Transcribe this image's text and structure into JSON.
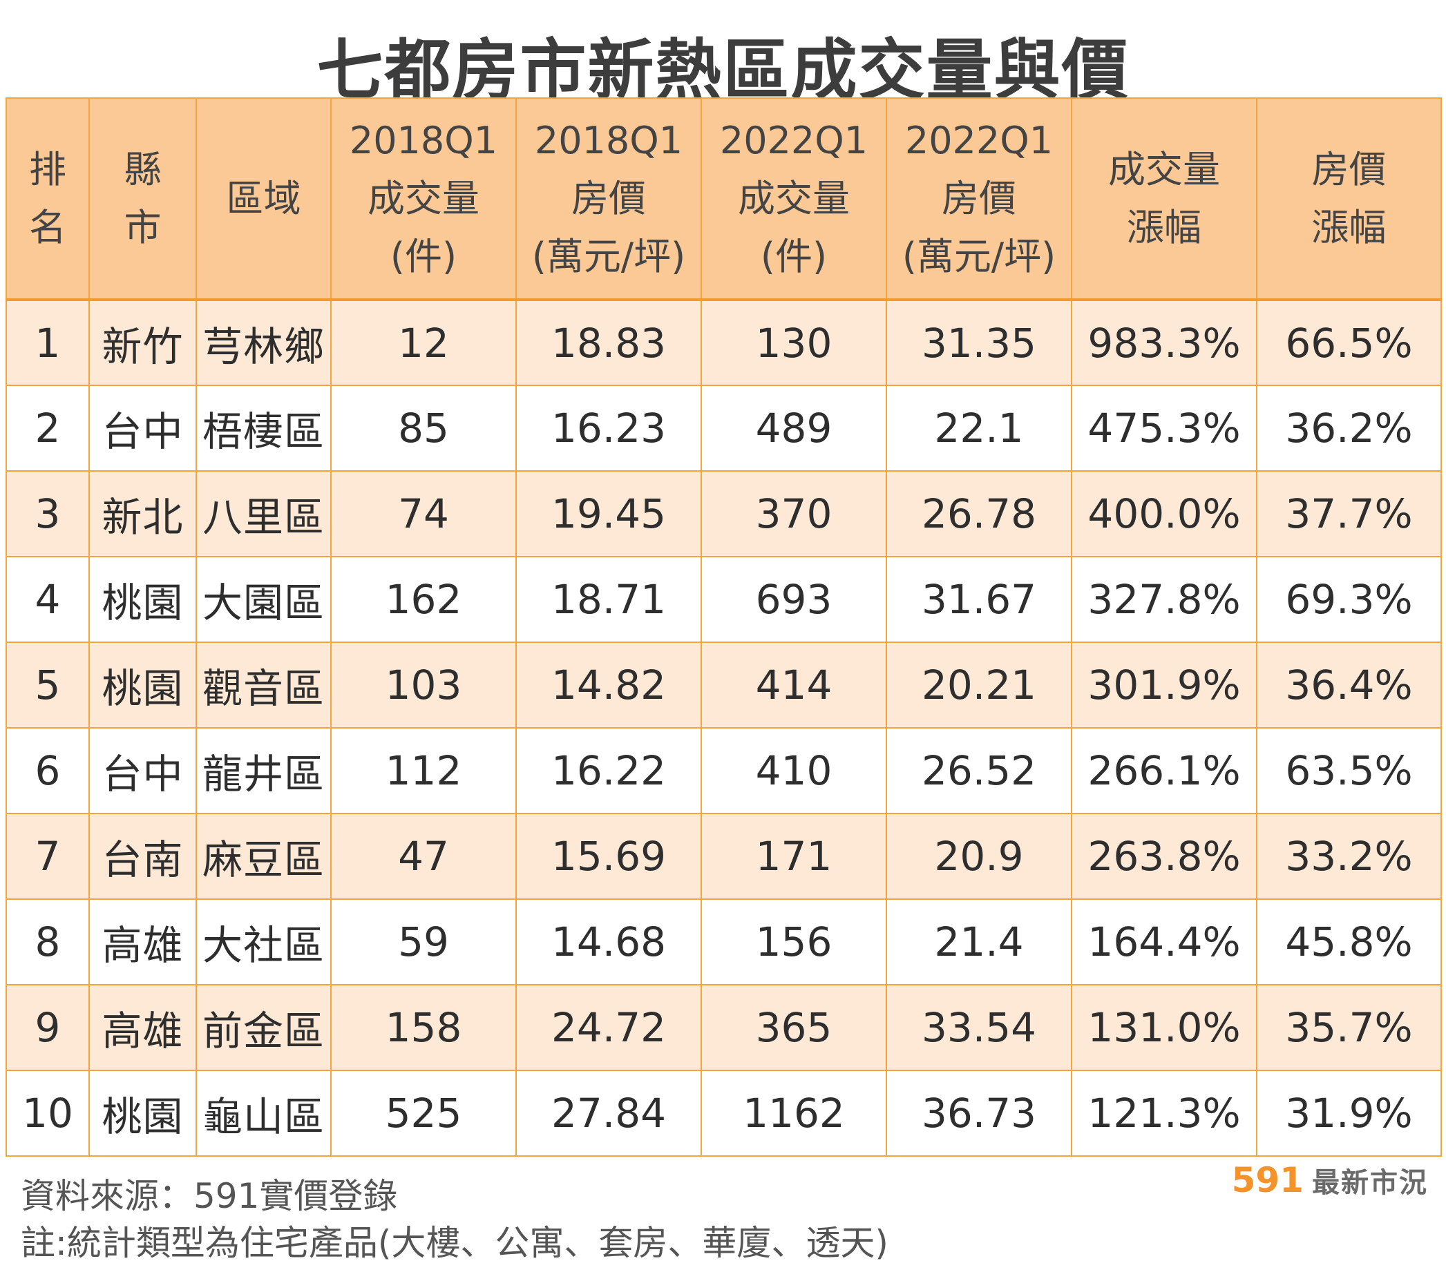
{
  "title": "七都房市新熱區成交量與價",
  "chart_data": {
    "type": "table",
    "title": "七都房市新熱區成交量與價",
    "headers": [
      [
        "排",
        "名"
      ],
      [
        "縣",
        "市"
      ],
      [
        "區域"
      ],
      [
        "2018Q1",
        "成交量",
        "(件)"
      ],
      [
        "2018Q1",
        "房價",
        "(萬元/坪)"
      ],
      [
        "2022Q1",
        "成交量",
        "(件)"
      ],
      [
        "2022Q1",
        "房價",
        "(萬元/坪)"
      ],
      [
        "成交量",
        "漲幅"
      ],
      [
        "房價",
        "漲幅"
      ]
    ],
    "rows": [
      [
        "1",
        "新竹",
        "芎林鄉",
        "12",
        "18.83",
        "130",
        "31.35",
        "983.3%",
        "66.5%"
      ],
      [
        "2",
        "台中",
        "梧棲區",
        "85",
        "16.23",
        "489",
        "22.1",
        "475.3%",
        "36.2%"
      ],
      [
        "3",
        "新北",
        "八里區",
        "74",
        "19.45",
        "370",
        "26.78",
        "400.0%",
        "37.7%"
      ],
      [
        "4",
        "桃園",
        "大園區",
        "162",
        "18.71",
        "693",
        "31.67",
        "327.8%",
        "69.3%"
      ],
      [
        "5",
        "桃園",
        "觀音區",
        "103",
        "14.82",
        "414",
        "20.21",
        "301.9%",
        "36.4%"
      ],
      [
        "6",
        "台中",
        "龍井區",
        "112",
        "16.22",
        "410",
        "26.52",
        "266.1%",
        "63.5%"
      ],
      [
        "7",
        "台南",
        "麻豆區",
        "47",
        "15.69",
        "171",
        "20.9",
        "263.8%",
        "33.2%"
      ],
      [
        "8",
        "高雄",
        "大社區",
        "59",
        "14.68",
        "156",
        "21.4",
        "164.4%",
        "45.8%"
      ],
      [
        "9",
        "高雄",
        "前金區",
        "158",
        "24.72",
        "365",
        "33.54",
        "131.0%",
        "35.7%"
      ],
      [
        "10",
        "桃園",
        "龜山區",
        "525",
        "27.84",
        "1162",
        "36.73",
        "121.3%",
        "31.9%"
      ]
    ]
  },
  "footer": {
    "source": "資料來源：591實價登錄",
    "note": "註:統計類型為住宅產品(大樓、公寓、套房、華廈、透天)"
  },
  "brand": {
    "number": "591",
    "text": "最新市況"
  },
  "colors": {
    "header_bg": "#fbc995",
    "border": "#f6a53c",
    "odd_row_bg": "#fde9d5",
    "brand_orange": "#f4922b"
  }
}
